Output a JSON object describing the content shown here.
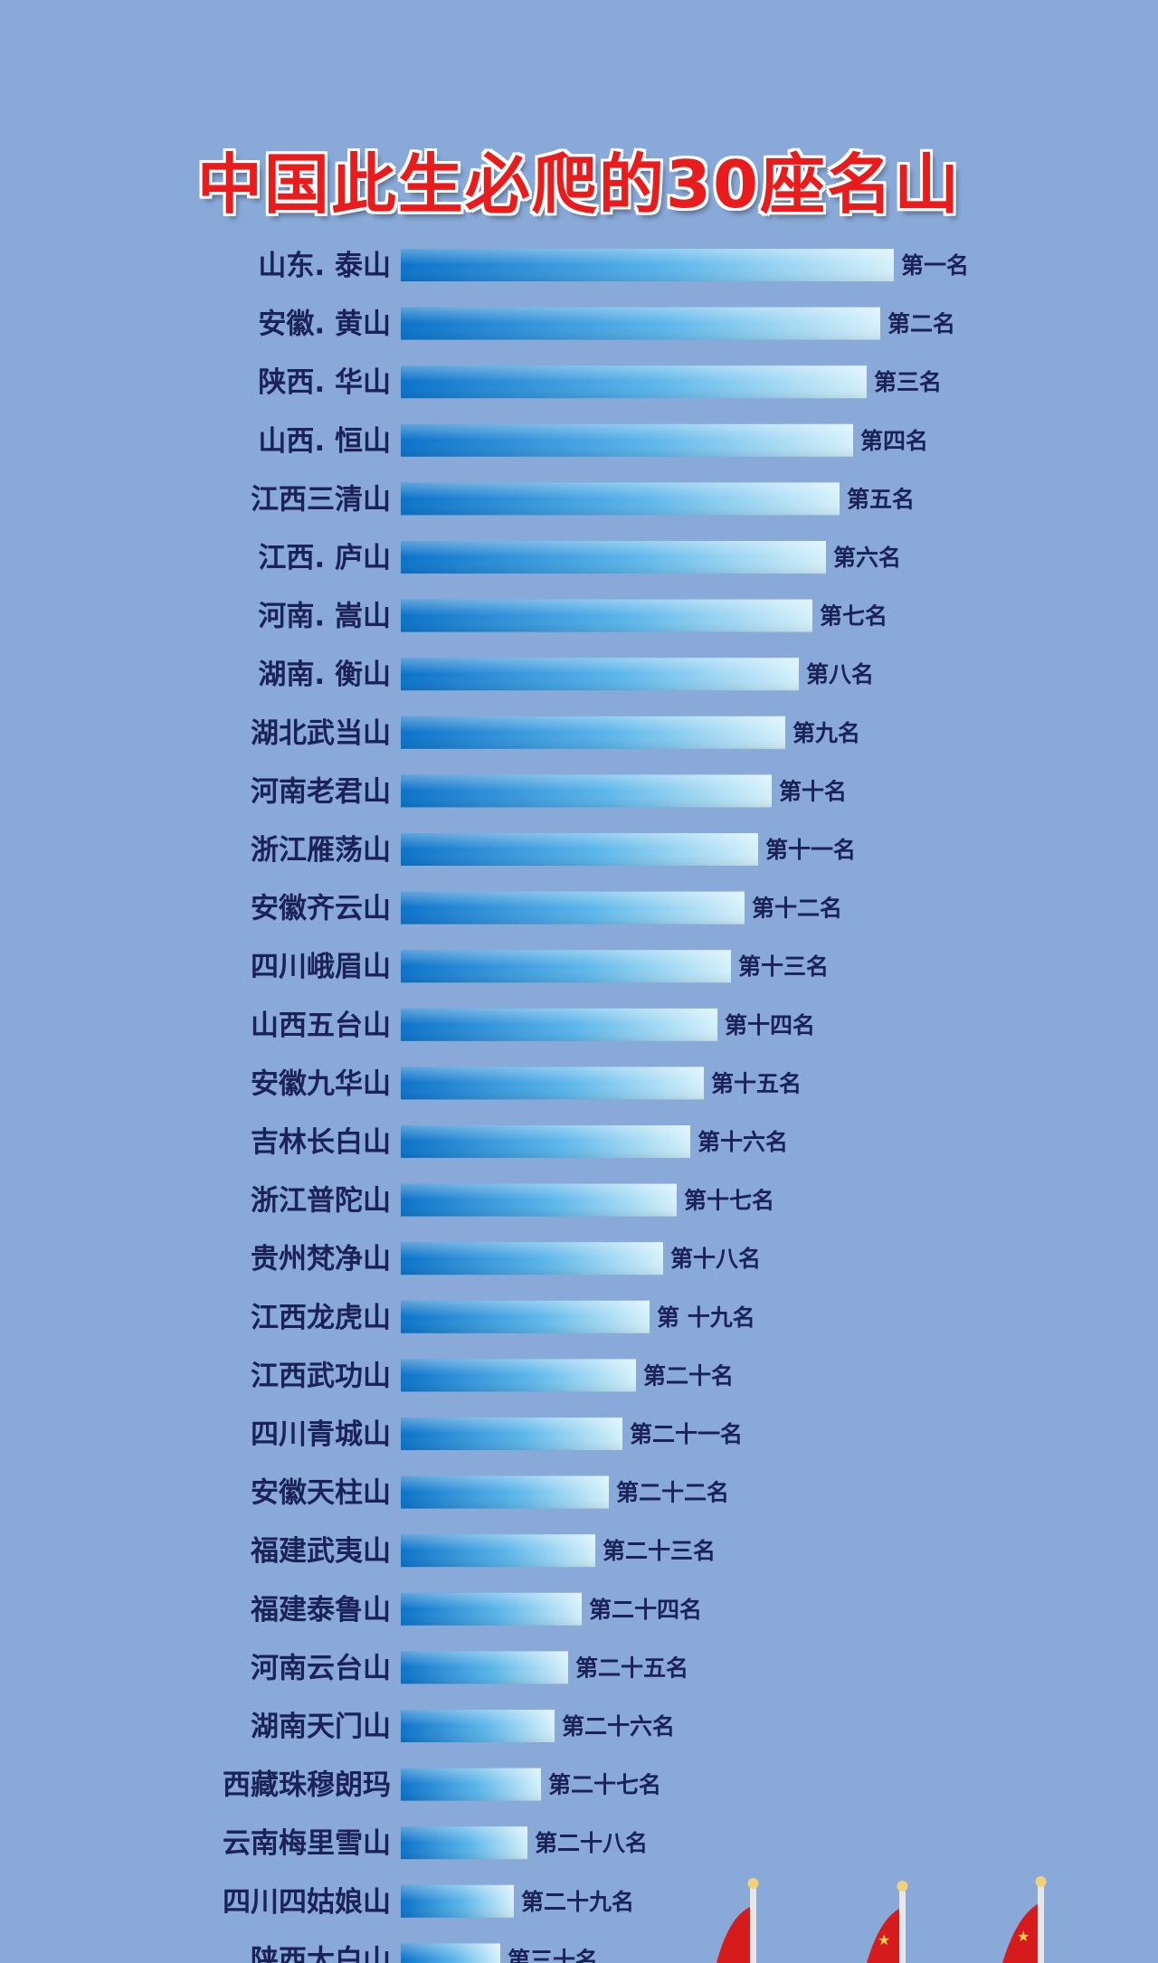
{
  "title": "中国此生必爬的30座名山",
  "colors": {
    "background": "#89a9d9",
    "title": "#e81c1c",
    "bar_start": "#0b72c9",
    "bar_end": "#d5f1fb",
    "label": "#1a2258",
    "flag": "#d51b1b"
  },
  "chart_data": {
    "type": "bar",
    "orientation": "horizontal",
    "title": "中国此生必爬的30座名山",
    "categories": [
      "山东. 泰山",
      "安徽. 黄山",
      "陕西. 华山",
      "山西. 恒山",
      "江西三清山",
      "江西. 庐山",
      "河南. 嵩山",
      "湖南. 衡山",
      "湖北武当山",
      "河南老君山",
      "浙江雁荡山",
      "安徽齐云山",
      "四川峨眉山",
      "山西五台山",
      "安徽九华山",
      "吉林长白山",
      "浙江普陀山",
      "贵州梵净山",
      "江西龙虎山",
      "江西武功山",
      "四川青城山",
      "安徽天柱山",
      "福建武夷山",
      "福建泰鲁山",
      "河南云台山",
      "湖南天门山",
      "西藏珠穆朗玛",
      "云南梅里雪山",
      "四川四姑娘山",
      "陕西太白山"
    ],
    "ranks": [
      "第一名",
      "第二名",
      "第三名",
      "第四名",
      "第五名",
      "第六名",
      "第七名",
      "第八名",
      "第九名",
      "第十名",
      "第十一名",
      "第十二名",
      "第十三名",
      "第十四名",
      "第十五名",
      "第十六名",
      "第十七名",
      "第十八名",
      "第 十九名",
      "第二十名",
      "第二十一名",
      "第二十二名",
      "第二十三名",
      "第二十四名",
      "第二十五名",
      "第二十六名",
      "第二十七名",
      "第二十八名",
      "第二十九名",
      "第三十名"
    ],
    "values": [
      30,
      29,
      28,
      27,
      26,
      25,
      24,
      23,
      22,
      21,
      20,
      19,
      18,
      17,
      16,
      15,
      14,
      13,
      12,
      11,
      10,
      9,
      8,
      7,
      6,
      5,
      4,
      3,
      2,
      1
    ],
    "grid": false,
    "legend": "none"
  }
}
